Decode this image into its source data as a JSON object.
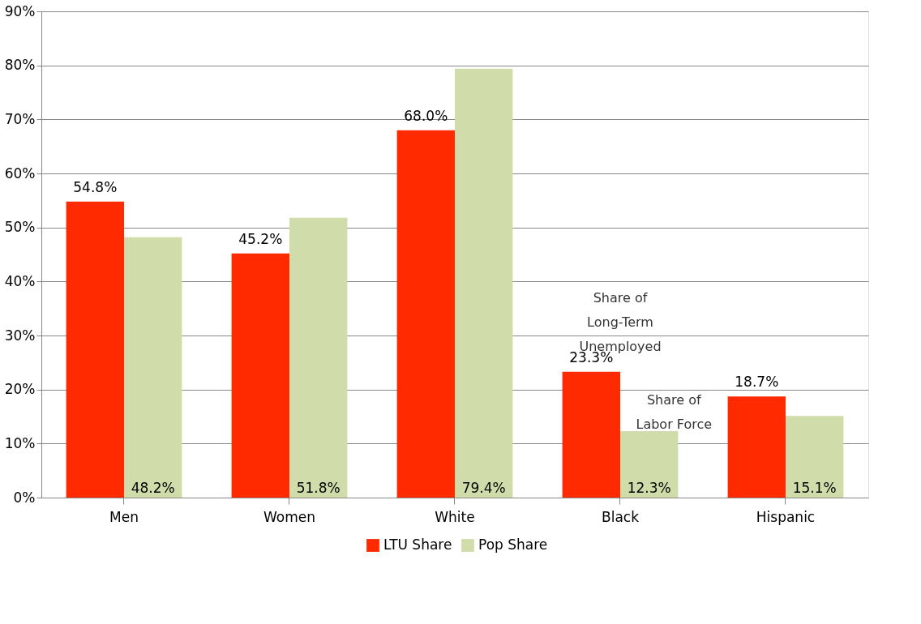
{
  "chart_data": {
    "type": "bar",
    "categories": [
      "Men",
      "Women",
      "White",
      "Black",
      "Hispanic"
    ],
    "series": [
      {
        "name": "LTU Share",
        "color": "#ff2a00",
        "values": [
          54.8,
          45.2,
          68.0,
          23.3,
          18.7
        ],
        "value_labels": [
          "54.8%",
          "45.2%",
          "68.0%",
          "23.3%",
          "18.7%"
        ]
      },
      {
        "name": "Pop Share",
        "color": "#d0dcaa",
        "values": [
          48.2,
          51.8,
          79.4,
          12.3,
          15.1
        ],
        "value_labels": [
          "48.2%",
          "51.8%",
          "79.4%",
          "12.3%",
          "15.1%"
        ]
      }
    ],
    "ylim": [
      0,
      90
    ],
    "yticks": [
      {
        "value": 0,
        "label": "0%"
      },
      {
        "value": 10,
        "label": "10%"
      },
      {
        "value": 20,
        "label": "20%"
      },
      {
        "value": 30,
        "label": "30%"
      },
      {
        "value": 40,
        "label": "40%"
      },
      {
        "value": 50,
        "label": "50%"
      },
      {
        "value": 60,
        "label": "60%"
      },
      {
        "value": 70,
        "label": "70%"
      },
      {
        "value": 80,
        "label": "80%"
      },
      {
        "value": 90,
        "label": "90%"
      }
    ],
    "grid": "y",
    "legend": "bottom",
    "annotations": [
      "Share of\nLong-Term\nUnemployed",
      "Share of\nLabor Force"
    ]
  }
}
